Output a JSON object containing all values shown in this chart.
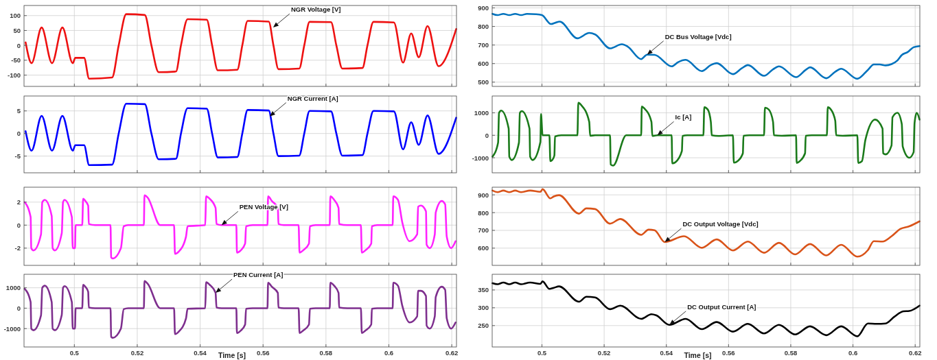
{
  "chart_data": [
    {
      "type": "line",
      "x": [
        0.4845,
        0.4864,
        0.4896,
        0.4929,
        0.4962,
        0.4995,
        0.5003,
        0.5031,
        0.5047,
        0.512,
        0.5141,
        0.5165,
        0.5224,
        0.5245,
        0.5268,
        0.5323,
        0.5339,
        0.536,
        0.5421,
        0.5438,
        0.5456,
        0.5518,
        0.5534,
        0.5551,
        0.5618,
        0.5633,
        0.5649,
        0.5715,
        0.5731,
        0.5748,
        0.5816,
        0.5833,
        0.5852,
        0.5916,
        0.5932,
        0.5951,
        0.6016,
        0.6045,
        0.6071,
        0.6095,
        0.6123,
        0.6158,
        0.6214
      ],
      "series": [
        {
          "color": "#ee1111",
          "values": [
            10,
            -60,
            60,
            -60,
            60,
            -60,
            -42,
            -42,
            -112,
            -108,
            0,
            105,
            102,
            0,
            -90,
            -88,
            0,
            88,
            86,
            0,
            -84,
            -82,
            0,
            82,
            80,
            0,
            -80,
            -78,
            0,
            79,
            78,
            0,
            -78,
            -76,
            0,
            79,
            77,
            -58,
            40,
            -40,
            65,
            -70,
            55
          ]
        }
      ],
      "xlim": [
        0.484,
        0.6215
      ],
      "xticks": [
        0.5,
        0.52,
        0.54,
        0.56,
        0.58,
        0.6,
        0.62
      ],
      "ylim": [
        -138,
        134
      ],
      "yticks": [
        -100,
        -50,
        0,
        50,
        100
      ],
      "grid": true,
      "tick_labels": "y",
      "annotations": [
        {
          "text": "NGR Voltage [V]",
          "x": 0.5632,
          "y": 60
        }
      ]
    },
    {
      "type": "line",
      "x": [
        0.4841,
        0.4857,
        0.4876,
        0.4895,
        0.4914,
        0.4933,
        0.4952,
        0.4981,
        0.5,
        0.5029,
        0.5043,
        0.5057,
        0.5114,
        0.5152,
        0.5171,
        0.5219,
        0.5257,
        0.5276,
        0.5319,
        0.5338,
        0.5362,
        0.5417,
        0.5438,
        0.5462,
        0.5514,
        0.5543,
        0.5562,
        0.5614,
        0.5643,
        0.5662,
        0.5714,
        0.5743,
        0.5762,
        0.5817,
        0.5848,
        0.5862,
        0.5914,
        0.5943,
        0.5962,
        0.6014,
        0.6048,
        0.6067,
        0.6086,
        0.6105,
        0.6124,
        0.6143,
        0.6157,
        0.6176,
        0.6195,
        0.6214
      ],
      "series": [
        {
          "color": "#0072bd",
          "values": [
            868,
            861,
            868,
            861,
            868,
            861,
            868,
            866,
            861,
            813,
            820,
            826,
            736,
            765,
            757,
            682,
            704,
            691,
            624,
            648,
            647,
            585,
            608,
            620,
            559,
            592,
            602,
            543,
            575,
            592,
            534,
            569,
            585,
            527,
            566,
            580,
            521,
            556,
            572,
            518,
            566,
            595,
            595,
            590,
            597,
            617,
            646,
            662,
            688,
            694
          ]
        }
      ],
      "xlim": [
        0.484,
        0.6215
      ],
      "xticks": [
        0.5,
        0.52,
        0.54,
        0.56,
        0.58,
        0.6,
        0.62
      ],
      "ylim": [
        477,
        913
      ],
      "yticks": [
        500,
        600,
        700,
        800,
        900
      ],
      "grid": true,
      "tick_labels": "y",
      "annotations": [
        {
          "text": "DC Bus Voltage [Vdc]",
          "x": 0.5338,
          "y": 648
        }
      ]
    },
    {
      "type": "line",
      "x": [
        0.4845,
        0.4864,
        0.4896,
        0.4929,
        0.4962,
        0.4995,
        0.5003,
        0.5031,
        0.5047,
        0.512,
        0.5141,
        0.5165,
        0.5224,
        0.5245,
        0.5268,
        0.5323,
        0.5339,
        0.536,
        0.5421,
        0.5438,
        0.5456,
        0.5518,
        0.5534,
        0.5551,
        0.5618,
        0.5633,
        0.5649,
        0.5715,
        0.5731,
        0.5748,
        0.5816,
        0.5833,
        0.5852,
        0.5916,
        0.5932,
        0.5951,
        0.6016,
        0.6045,
        0.6071,
        0.6095,
        0.6123,
        0.6158,
        0.6214
      ],
      "series": [
        {
          "color": "#0000ff",
          "values": [
            0.5,
            -3.8,
            3.9,
            -3.8,
            3.9,
            -3.8,
            -2.6,
            -2.6,
            -7,
            -6.9,
            0,
            6.6,
            6.5,
            0,
            -5.7,
            -5.6,
            0,
            5.6,
            5.5,
            0,
            -5.3,
            -5.2,
            0,
            5.2,
            5.1,
            0,
            -5,
            -4.9,
            0,
            5,
            4.9,
            0,
            -4.9,
            -4.8,
            0,
            5,
            4.9,
            -3.5,
            2.5,
            -2.5,
            4,
            -4.5,
            3.5
          ]
        }
      ],
      "xlim": [
        0.484,
        0.6215
      ],
      "xticks": [
        0.5,
        0.52,
        0.54,
        0.56,
        0.58,
        0.6,
        0.62
      ],
      "ylim": [
        -8.7,
        8.3
      ],
      "yticks": [
        -5,
        0,
        5
      ],
      "grid": true,
      "tick_labels": "y",
      "annotations": [
        {
          "text": "NGR Current [A]",
          "x": 0.5621,
          "y": 3.8
        }
      ]
    },
    {
      "type": "line",
      "x": [
        0.4841,
        0.4859,
        0.4862,
        0.4869,
        0.4893,
        0.4895,
        0.4903,
        0.4926,
        0.4929,
        0.4935,
        0.496,
        0.4962,
        0.497,
        0.4995,
        0.4997,
        0.5002,
        0.5024,
        0.5027,
        0.5033,
        0.504,
        0.5042,
        0.5062,
        0.5114,
        0.5117,
        0.5126,
        0.5152,
        0.5155,
        0.5171,
        0.5219,
        0.5221,
        0.5229,
        0.5271,
        0.5319,
        0.5321,
        0.5329,
        0.5352,
        0.5355,
        0.5371,
        0.5417,
        0.5419,
        0.5429,
        0.545,
        0.5452,
        0.5467,
        0.5519,
        0.5522,
        0.5533,
        0.5543,
        0.5546,
        0.5567,
        0.5614,
        0.5617,
        0.5629,
        0.5646,
        0.5648,
        0.5667,
        0.5714,
        0.5717,
        0.5729,
        0.5743,
        0.5746,
        0.5771,
        0.5817,
        0.5819,
        0.5829,
        0.5846,
        0.5848,
        0.5867,
        0.5916,
        0.5919,
        0.5929,
        0.5943,
        0.5946,
        0.5967,
        0.6014,
        0.6017,
        0.6029,
        0.604,
        0.6071,
        0.6095,
        0.6097,
        0.6105,
        0.6124,
        0.6127,
        0.6143,
        0.6157,
        0.616,
        0.6181,
        0.6195,
        0.6198,
        0.6205,
        0.6214
      ],
      "series": [
        {
          "color": "#1a7a1a",
          "values": [
            -950,
            -330,
            1000,
            1100,
            300,
            -950,
            -1100,
            -330,
            1000,
            1080,
            300,
            -950,
            -1100,
            -300,
            950,
            0,
            0,
            -1150,
            -1100,
            -900,
            -50,
            0,
            0,
            1450,
            1350,
            600,
            -20,
            0,
            0,
            -1300,
            -1350,
            0,
            0,
            1280,
            1200,
            600,
            -30,
            0,
            0,
            -1250,
            -1200,
            -700,
            -30,
            0,
            0,
            1250,
            1150,
            600,
            0,
            -30,
            0,
            -1220,
            -1150,
            -800,
            -20,
            0,
            0,
            1230,
            1150,
            600,
            0,
            -20,
            0,
            -1230,
            -1150,
            -800,
            -20,
            0,
            0,
            1250,
            1150,
            650,
            0,
            -20,
            0,
            -1230,
            -1150,
            -200,
            700,
            300,
            -800,
            -850,
            -450,
            800,
            1000,
            500,
            -500,
            -1000,
            -750,
            550,
            1000,
            700
          ]
        }
      ],
      "xlim": [
        0.484,
        0.6215
      ],
      "xticks": [
        0.5,
        0.52,
        0.54,
        0.56,
        0.58,
        0.6,
        0.62
      ],
      "ylim": [
        -1670,
        1750
      ],
      "yticks": [
        -1000,
        0,
        1000
      ],
      "grid": true,
      "tick_labels": "y",
      "annotations": [
        {
          "text": "Ic [A]",
          "x": 0.5371,
          "y": 0
        }
      ]
    },
    {
      "type": "line",
      "x": [
        0.4842,
        0.4861,
        0.4863,
        0.487,
        0.4894,
        0.4898,
        0.4906,
        0.4928,
        0.4931,
        0.4938,
        0.496,
        0.4964,
        0.4969,
        0.4992,
        0.4995,
        0.5002,
        0.5004,
        0.5025,
        0.5028,
        0.5035,
        0.5044,
        0.5046,
        0.5066,
        0.5115,
        0.5117,
        0.5122,
        0.5148,
        0.5157,
        0.5171,
        0.5221,
        0.5223,
        0.5233,
        0.5273,
        0.5317,
        0.532,
        0.5332,
        0.5355,
        0.536,
        0.5416,
        0.5419,
        0.543,
        0.5449,
        0.5452,
        0.5468,
        0.5515,
        0.5517,
        0.5529,
        0.5543,
        0.5546,
        0.5567,
        0.5614,
        0.5616,
        0.5628,
        0.5647,
        0.5649,
        0.5666,
        0.5713,
        0.5716,
        0.5727,
        0.5746,
        0.5749,
        0.5767,
        0.5812,
        0.5814,
        0.5826,
        0.584,
        0.5842,
        0.5868,
        0.5911,
        0.5914,
        0.5925,
        0.5944,
        0.5946,
        0.5963,
        0.6012,
        0.6014,
        0.6029,
        0.6043,
        0.6066,
        0.609,
        0.6093,
        0.6102,
        0.6118,
        0.612,
        0.613,
        0.6146,
        0.6149,
        0.6168,
        0.6179,
        0.6184,
        0.6198,
        0.6212
      ],
      "series": [
        {
          "color": "#ff22ff",
          "values": [
            2,
            0.7,
            -2,
            -2.2,
            -0.8,
            2,
            2.2,
            0.8,
            -2,
            -2.2,
            -0.7,
            2,
            2.2,
            0.7,
            -2,
            -2,
            0,
            0,
            2.3,
            2.1,
            1.7,
            0.1,
            0,
            0,
            -2.8,
            -2.9,
            -2,
            -0.1,
            0,
            0,
            2.6,
            2.4,
            0,
            0,
            -2.5,
            -2.3,
            -1,
            -0.1,
            0,
            2.5,
            2.3,
            1.5,
            0.1,
            0,
            0,
            -2.4,
            -2.2,
            -1.6,
            -0.1,
            0,
            0,
            2.5,
            2.1,
            1.5,
            0.1,
            0,
            0,
            -2.4,
            -2.2,
            -1.6,
            -0.1,
            0,
            0,
            2.5,
            2.2,
            1.5,
            0.1,
            0,
            0,
            -2.4,
            -2.2,
            -1.6,
            -0.1,
            0,
            0,
            2.5,
            2.2,
            0.2,
            -1.4,
            -0.8,
            1.6,
            1.7,
            1.2,
            -1.7,
            -2,
            -0.8,
            1.1,
            2.1,
            1.8,
            -1,
            -2,
            -1.4
          ]
        }
      ],
      "xlim": [
        0.484,
        0.6215
      ],
      "xticks": [
        0.5,
        0.52,
        0.54,
        0.56,
        0.58,
        0.6,
        0.62
      ],
      "ylim": [
        -3.5,
        3.3
      ],
      "yticks": [
        -2,
        0,
        2
      ],
      "grid": true,
      "tick_labels": "y",
      "annotations": [
        {
          "text": "PEN Voltage [V]",
          "x": 0.5468,
          "y": 0
        }
      ]
    },
    {
      "type": "line",
      "x": [
        0.4841,
        0.4857,
        0.4876,
        0.4895,
        0.4914,
        0.4933,
        0.4962,
        0.4995,
        0.5002,
        0.5027,
        0.5038,
        0.5055,
        0.5119,
        0.5143,
        0.5171,
        0.5219,
        0.5252,
        0.5319,
        0.5343,
        0.5362,
        0.5395,
        0.5457,
        0.5514,
        0.5562,
        0.5614,
        0.5662,
        0.5714,
        0.5762,
        0.5814,
        0.5862,
        0.5914,
        0.5962,
        0.6014,
        0.6048,
        0.6067,
        0.6095,
        0.6124,
        0.6152,
        0.6181,
        0.6214
      ],
      "series": [
        {
          "color": "#d95319",
          "values": [
            924,
            915,
            924,
            915,
            924,
            915,
            924,
            917,
            932,
            880,
            891,
            898,
            794,
            824,
            820,
            738,
            764,
            675,
            704,
            701,
            634,
            667,
            602,
            649,
            587,
            637,
            574,
            630,
            565,
            623,
            559,
            619,
            552,
            589,
            639,
            637,
            667,
            708,
            723,
            751
          ]
        }
      ],
      "xlim": [
        0.484,
        0.6215
      ],
      "xticks": [
        0.5,
        0.52,
        0.54,
        0.56,
        0.58,
        0.6,
        0.62
      ],
      "ylim": [
        503,
        943
      ],
      "yticks": [
        600,
        700,
        800,
        900
      ],
      "grid": true,
      "tick_labels": "y",
      "annotations": [
        {
          "text": "DC Output Voltage [Vdc]",
          "x": 0.5395,
          "y": 634
        }
      ]
    },
    {
      "type": "line",
      "x": [
        0.4842,
        0.4861,
        0.4863,
        0.487,
        0.4894,
        0.4898,
        0.4906,
        0.4928,
        0.4931,
        0.4938,
        0.496,
        0.4964,
        0.4969,
        0.4992,
        0.4995,
        0.5002,
        0.5004,
        0.5025,
        0.5028,
        0.5035,
        0.5044,
        0.5046,
        0.5066,
        0.5115,
        0.5117,
        0.5122,
        0.5148,
        0.5157,
        0.5171,
        0.5221,
        0.5223,
        0.5233,
        0.5273,
        0.5317,
        0.532,
        0.5332,
        0.5355,
        0.536,
        0.5416,
        0.5419,
        0.543,
        0.5449,
        0.5452,
        0.5468,
        0.5515,
        0.5517,
        0.5529,
        0.5543,
        0.5546,
        0.5567,
        0.5614,
        0.5616,
        0.5628,
        0.5647,
        0.5649,
        0.5666,
        0.5713,
        0.5716,
        0.5727,
        0.5746,
        0.5749,
        0.5767,
        0.5812,
        0.5814,
        0.5826,
        0.584,
        0.5842,
        0.5868,
        0.5911,
        0.5914,
        0.5925,
        0.5944,
        0.5946,
        0.5963,
        0.6012,
        0.6014,
        0.6029,
        0.6043,
        0.6066,
        0.609,
        0.6093,
        0.6102,
        0.6118,
        0.612,
        0.613,
        0.6146,
        0.6149,
        0.6168,
        0.6179,
        0.6184,
        0.6198,
        0.6212
      ],
      "series": [
        {
          "color": "#7e2f8e",
          "values": [
            950,
            300,
            -1000,
            -1080,
            -350,
            1000,
            1100,
            300,
            -1000,
            -1080,
            -330,
            1000,
            1080,
            300,
            -1000,
            -1000,
            0,
            0,
            1150,
            1050,
            800,
            30,
            0,
            0,
            -1400,
            -1450,
            -1000,
            -50,
            0,
            0,
            1330,
            1200,
            0,
            0,
            -1270,
            -1150,
            -500,
            -30,
            0,
            1270,
            1150,
            750,
            30,
            0,
            0,
            -1220,
            -1100,
            -800,
            -30,
            0,
            0,
            1250,
            1050,
            750,
            30,
            0,
            0,
            -1220,
            -1100,
            -800,
            -30,
            0,
            0,
            1250,
            1100,
            750,
            30,
            0,
            0,
            -1220,
            -1100,
            -800,
            -30,
            0,
            0,
            1250,
            1100,
            100,
            -700,
            -400,
            850,
            850,
            600,
            -850,
            -1000,
            -400,
            550,
            1050,
            900,
            -500,
            -1000,
            -700
          ]
        }
      ],
      "xlim": [
        0.484,
        0.6215
      ],
      "xticks": [
        0.5,
        0.52,
        0.54,
        0.56,
        0.58,
        0.6,
        0.62
      ],
      "ylim": [
        -1900,
        1660
      ],
      "yticks": [
        -1000,
        0,
        1000
      ],
      "grid": true,
      "xlabel": "Time [s]",
      "annotations": [
        {
          "text": "PEN Current [A]",
          "x": 0.5449,
          "y": 750
        }
      ]
    },
    {
      "type": "line",
      "x": [
        0.4841,
        0.4857,
        0.4876,
        0.4895,
        0.4914,
        0.4933,
        0.4962,
        0.4995,
        0.5002,
        0.5024,
        0.5038,
        0.5055,
        0.5119,
        0.5143,
        0.5171,
        0.5219,
        0.5252,
        0.5319,
        0.5352,
        0.5367,
        0.541,
        0.5462,
        0.5514,
        0.5562,
        0.5614,
        0.5662,
        0.5714,
        0.5762,
        0.5814,
        0.5862,
        0.5914,
        0.5962,
        0.6014,
        0.6048,
        0.6076,
        0.6105,
        0.6133,
        0.6162,
        0.6181,
        0.6214
      ],
      "series": [
        {
          "color": "#000000",
          "values": [
            369,
            366,
            371,
            366,
            371,
            366,
            371,
            367,
            374,
            353,
            356,
            360,
            317,
            331,
            329,
            296,
            306,
            269,
            282,
            279,
            252,
            269,
            240,
            260,
            233,
            255,
            228,
            252,
            225,
            248,
            223,
            248,
            220,
            256,
            255,
            256,
            275,
            290,
            291,
            306
          ]
        }
      ],
      "xlim": [
        0.484,
        0.6215
      ],
      "xticks": [
        0.5,
        0.52,
        0.54,
        0.56,
        0.58,
        0.6,
        0.62
      ],
      "ylim": [
        190,
        394
      ],
      "yticks": [
        250,
        300,
        350
      ],
      "grid": true,
      "xlabel": "Time [s]",
      "annotations": [
        {
          "text": "DC Output Current [A]",
          "x": 0.541,
          "y": 252
        }
      ]
    }
  ]
}
